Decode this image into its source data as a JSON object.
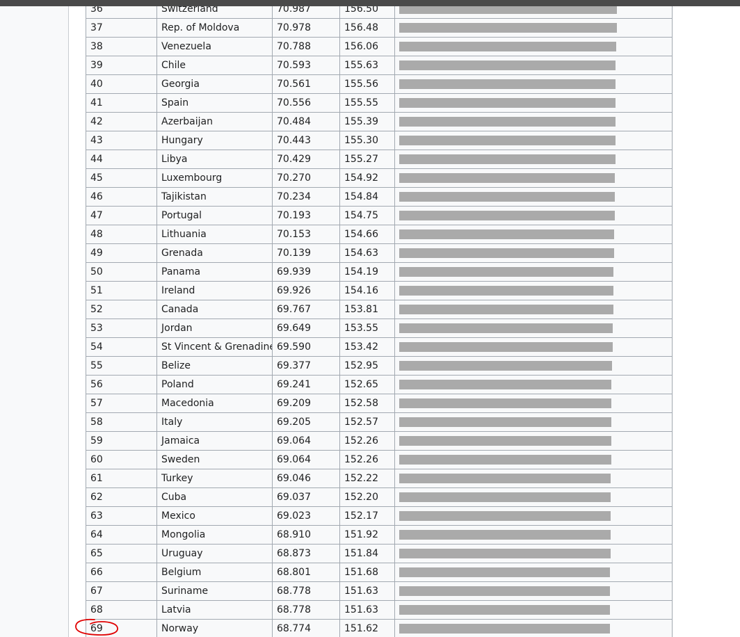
{
  "table": {
    "rows": [
      {
        "rank": "36",
        "country": "Switzerland",
        "score": "70.987",
        "percent": "156.50",
        "value": 156.5
      },
      {
        "rank": "37",
        "country": "Rep. of Moldova",
        "score": "70.978",
        "percent": "156.48",
        "value": 156.48
      },
      {
        "rank": "38",
        "country": "Venezuela",
        "score": "70.788",
        "percent": "156.06",
        "value": 156.06
      },
      {
        "rank": "39",
        "country": "Chile",
        "score": "70.593",
        "percent": "155.63",
        "value": 155.63
      },
      {
        "rank": "40",
        "country": "Georgia",
        "score": "70.561",
        "percent": "155.56",
        "value": 155.56
      },
      {
        "rank": "41",
        "country": "Spain",
        "score": "70.556",
        "percent": "155.55",
        "value": 155.55
      },
      {
        "rank": "42",
        "country": "Azerbaijan",
        "score": "70.484",
        "percent": "155.39",
        "value": 155.39
      },
      {
        "rank": "43",
        "country": "Hungary",
        "score": "70.443",
        "percent": "155.30",
        "value": 155.3
      },
      {
        "rank": "44",
        "country": "Libya",
        "score": "70.429",
        "percent": "155.27",
        "value": 155.27
      },
      {
        "rank": "45",
        "country": "Luxembourg",
        "score": "70.270",
        "percent": "154.92",
        "value": 154.92
      },
      {
        "rank": "46",
        "country": "Tajikistan",
        "score": "70.234",
        "percent": "154.84",
        "value": 154.84
      },
      {
        "rank": "47",
        "country": "Portugal",
        "score": "70.193",
        "percent": "154.75",
        "value": 154.75
      },
      {
        "rank": "48",
        "country": "Lithuania",
        "score": "70.153",
        "percent": "154.66",
        "value": 154.66
      },
      {
        "rank": "49",
        "country": "Grenada",
        "score": "70.139",
        "percent": "154.63",
        "value": 154.63
      },
      {
        "rank": "50",
        "country": "Panama",
        "score": "69.939",
        "percent": "154.19",
        "value": 154.19
      },
      {
        "rank": "51",
        "country": "Ireland",
        "score": "69.926",
        "percent": "154.16",
        "value": 154.16
      },
      {
        "rank": "52",
        "country": "Canada",
        "score": "69.767",
        "percent": "153.81",
        "value": 153.81
      },
      {
        "rank": "53",
        "country": "Jordan",
        "score": "69.649",
        "percent": "153.55",
        "value": 153.55
      },
      {
        "rank": "54",
        "country": "St Vincent & Grenadines",
        "score": "69.590",
        "percent": "153.42",
        "value": 153.42
      },
      {
        "rank": "55",
        "country": "Belize",
        "score": "69.377",
        "percent": "152.95",
        "value": 152.95
      },
      {
        "rank": "56",
        "country": "Poland",
        "score": "69.241",
        "percent": "152.65",
        "value": 152.65
      },
      {
        "rank": "57",
        "country": "Macedonia",
        "score": "69.209",
        "percent": "152.58",
        "value": 152.58
      },
      {
        "rank": "58",
        "country": "Italy",
        "score": "69.205",
        "percent": "152.57",
        "value": 152.57
      },
      {
        "rank": "59",
        "country": "Jamaica",
        "score": "69.064",
        "percent": "152.26",
        "value": 152.26
      },
      {
        "rank": "60",
        "country": "Sweden",
        "score": "69.064",
        "percent": "152.26",
        "value": 152.26
      },
      {
        "rank": "61",
        "country": "Turkey",
        "score": "69.046",
        "percent": "152.22",
        "value": 152.22
      },
      {
        "rank": "62",
        "country": "Cuba",
        "score": "69.037",
        "percent": "152.20",
        "value": 152.2
      },
      {
        "rank": "63",
        "country": "Mexico",
        "score": "69.023",
        "percent": "152.17",
        "value": 152.17
      },
      {
        "rank": "64",
        "country": "Mongolia",
        "score": "68.910",
        "percent": "151.92",
        "value": 151.92
      },
      {
        "rank": "65",
        "country": "Uruguay",
        "score": "68.873",
        "percent": "151.84",
        "value": 151.84
      },
      {
        "rank": "66",
        "country": "Belgium",
        "score": "68.801",
        "percent": "151.68",
        "value": 151.68
      },
      {
        "rank": "67",
        "country": "Suriname",
        "score": "68.778",
        "percent": "151.63",
        "value": 151.63
      },
      {
        "rank": "68",
        "country": "Latvia",
        "score": "68.778",
        "percent": "151.63",
        "value": 151.63
      },
      {
        "rank": "69",
        "country": "Norway",
        "score": "68.774",
        "percent": "151.62",
        "value": 151.62
      }
    ],
    "bar_color": "#aaaaaa"
  },
  "annotation": {
    "shape": "hand-drawn-circle",
    "target_rank": "69",
    "color": "#e00000"
  }
}
